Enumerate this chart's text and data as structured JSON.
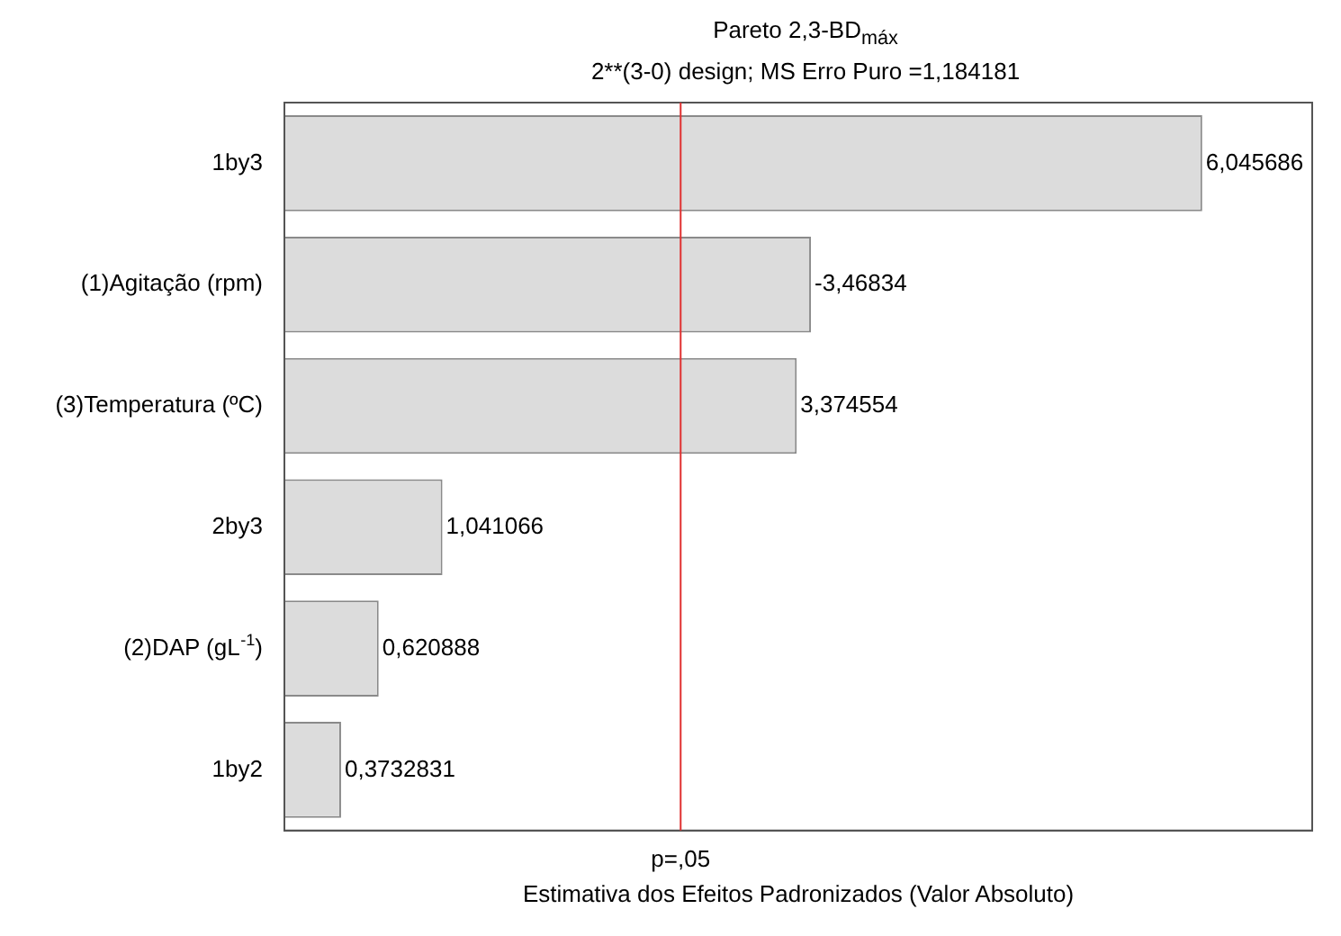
{
  "chart_data": {
    "type": "bar",
    "orientation": "horizontal",
    "title": "Pareto 2,3-BD$_{máx}$",
    "subtitle": "2**(3-0) design; MS Erro Puro =1,184181",
    "xlabel": "Estimativa dos Efeitos Padronizados (Valor Absoluto)",
    "categories": [
      "1by3",
      "(1)Agitação (rpm)",
      "(3)Temperatura (ºC)",
      "2by3",
      "(2)DAP (gL$^{-1}$)",
      "1by2"
    ],
    "values": [
      6.045686,
      3.46834,
      3.374554,
      1.041066,
      0.620888,
      0.3732831
    ],
    "value_labels": [
      "6,045686",
      "-3,46834",
      "3,374554",
      "1,041066",
      "0,620888",
      "0,3732831"
    ],
    "color": "#dcdcdc",
    "xlim": [
      0,
      6.77
    ],
    "ref_lines": [
      {
        "axis": "x",
        "value": 2.61,
        "label": "p=,05",
        "color": "#e03030"
      }
    ],
    "legend": false
  }
}
